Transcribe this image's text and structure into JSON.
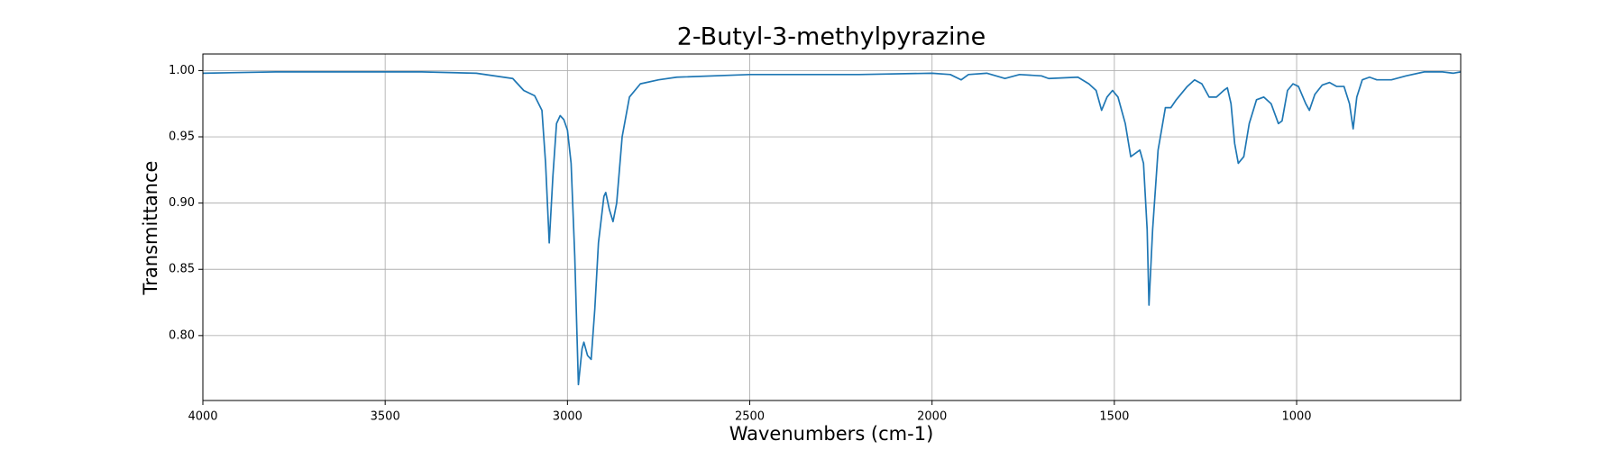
{
  "chart_data": {
    "type": "line",
    "title": "2-Butyl-3-methylpyrazine",
    "x_label": "Wavenumbers (cm-1)",
    "y_label": "Transmittance",
    "xlim": [
      4000,
      550
    ],
    "ylim": [
      0.751,
      1.0125
    ],
    "xticks": [
      4000,
      3500,
      3000,
      2500,
      2000,
      1500,
      1000
    ],
    "yticks": [
      {
        "value": 0.8,
        "label": "0.80"
      },
      {
        "value": 0.85,
        "label": "0.85"
      },
      {
        "value": 0.9,
        "label": "0.90"
      },
      {
        "value": 0.95,
        "label": "0.95"
      },
      {
        "value": 1.0,
        "label": "1.00"
      }
    ],
    "grid": true,
    "series": [
      {
        "color": "#1f77b4",
        "x": [
          4000,
          3800,
          3600,
          3400,
          3250,
          3150,
          3120,
          3090,
          3070,
          3060,
          3050,
          3040,
          3030,
          3020,
          3010,
          3000,
          2990,
          2980,
          2970,
          2960,
          2955,
          2945,
          2935,
          2925,
          2915,
          2900,
          2895,
          2885,
          2875,
          2865,
          2850,
          2830,
          2800,
          2750,
          2700,
          2500,
          2200,
          2000,
          1950,
          1920,
          1900,
          1850,
          1800,
          1760,
          1700,
          1680,
          1600,
          1570,
          1550,
          1535,
          1520,
          1505,
          1490,
          1470,
          1455,
          1440,
          1430,
          1420,
          1410,
          1405,
          1395,
          1380,
          1360,
          1345,
          1330,
          1300,
          1280,
          1260,
          1240,
          1220,
          1200,
          1190,
          1180,
          1170,
          1160,
          1145,
          1130,
          1110,
          1090,
          1070,
          1050,
          1040,
          1025,
          1010,
          995,
          975,
          965,
          950,
          930,
          910,
          890,
          870,
          855,
          845,
          835,
          820,
          800,
          780,
          740,
          700,
          650,
          600,
          570,
          550
        ],
        "values": [
          0.998,
          0.999,
          0.999,
          0.999,
          0.998,
          0.994,
          0.985,
          0.981,
          0.97,
          0.93,
          0.87,
          0.92,
          0.96,
          0.966,
          0.963,
          0.955,
          0.93,
          0.86,
          0.763,
          0.79,
          0.795,
          0.785,
          0.782,
          0.82,
          0.87,
          0.905,
          0.908,
          0.895,
          0.886,
          0.9,
          0.95,
          0.98,
          0.99,
          0.993,
          0.995,
          0.997,
          0.997,
          0.998,
          0.997,
          0.993,
          0.997,
          0.998,
          0.994,
          0.997,
          0.996,
          0.994,
          0.995,
          0.99,
          0.985,
          0.97,
          0.98,
          0.985,
          0.98,
          0.96,
          0.935,
          0.938,
          0.94,
          0.93,
          0.88,
          0.823,
          0.88,
          0.94,
          0.972,
          0.972,
          0.978,
          0.988,
          0.993,
          0.99,
          0.98,
          0.98,
          0.985,
          0.987,
          0.975,
          0.945,
          0.93,
          0.935,
          0.96,
          0.978,
          0.98,
          0.975,
          0.96,
          0.962,
          0.985,
          0.99,
          0.988,
          0.975,
          0.97,
          0.982,
          0.989,
          0.991,
          0.988,
          0.988,
          0.975,
          0.956,
          0.98,
          0.993,
          0.995,
          0.993,
          0.993,
          0.996,
          0.999,
          0.999,
          0.998,
          0.999
        ]
      }
    ]
  }
}
